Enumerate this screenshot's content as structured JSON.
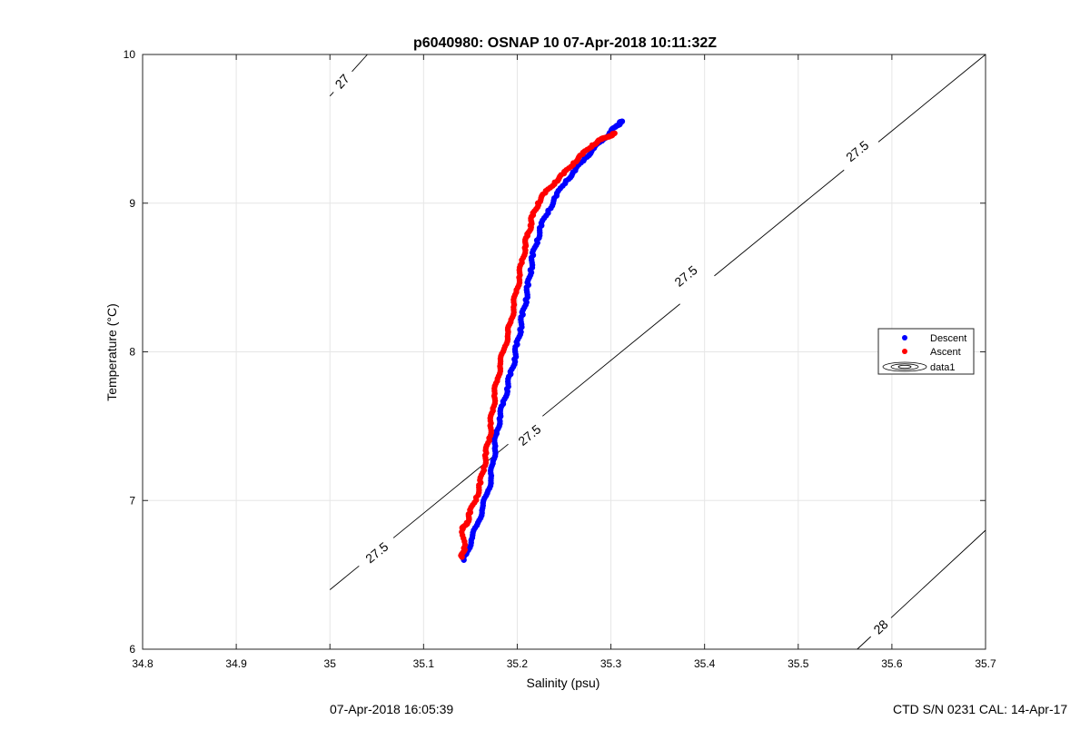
{
  "chart_data": {
    "type": "scatter",
    "title": "p6040980: OSNAP 10 07-Apr-2018 10:11:32Z",
    "xlabel": "Salinity (psu)",
    "ylabel": "Temperature (°C)",
    "xlim": [
      34.8,
      35.7
    ],
    "ylim": [
      6,
      10
    ],
    "x_ticks": [
      "34.8",
      "34.9",
      "35",
      "35.1",
      "35.2",
      "35.3",
      "35.4",
      "35.5",
      "35.6",
      "35.7"
    ],
    "y_ticks": [
      "6",
      "7",
      "8",
      "9",
      "10"
    ],
    "grid": true,
    "legend_position": "right",
    "legend": [
      "Descent",
      "Ascent",
      "data1"
    ],
    "series": [
      {
        "name": "Descent",
        "color": "#0000ff",
        "x": [
          35.143,
          35.146,
          35.152,
          35.158,
          35.163,
          35.168,
          35.172,
          35.174,
          35.176,
          35.178,
          35.181,
          35.185,
          35.189,
          35.193,
          35.197,
          35.2,
          35.203,
          35.206,
          35.209,
          35.212,
          35.214,
          35.217,
          35.221,
          35.226,
          35.233,
          35.242,
          35.252,
          35.262,
          35.272,
          35.282,
          35.292,
          35.3,
          35.306,
          35.31,
          35.312
        ],
        "y": [
          6.6,
          6.65,
          6.75,
          6.85,
          6.95,
          7.05,
          7.15,
          7.25,
          7.35,
          7.45,
          7.55,
          7.65,
          7.75,
          7.85,
          7.95,
          8.05,
          8.15,
          8.25,
          8.35,
          8.45,
          8.55,
          8.65,
          8.75,
          8.85,
          8.95,
          9.05,
          9.15,
          9.22,
          9.3,
          9.37,
          9.43,
          9.48,
          9.52,
          9.54,
          9.55
        ]
      },
      {
        "name": "Ascent",
        "color": "#ff0000",
        "x": [
          35.141,
          35.143,
          35.142,
          35.146,
          35.15,
          35.156,
          35.161,
          35.164,
          35.167,
          35.17,
          35.172,
          35.174,
          35.176,
          35.179,
          35.182,
          35.186,
          35.19,
          35.193,
          35.196,
          35.199,
          35.202,
          35.205,
          35.208,
          35.211,
          35.214,
          35.217,
          35.222,
          35.23,
          35.24,
          35.25,
          35.26,
          35.27,
          35.28,
          35.29,
          35.298,
          35.304
        ],
        "y": [
          6.62,
          6.68,
          6.81,
          6.85,
          6.92,
          7.02,
          7.12,
          7.22,
          7.32,
          7.42,
          7.52,
          7.62,
          7.72,
          7.82,
          7.92,
          8.02,
          8.12,
          8.2,
          8.3,
          8.4,
          8.5,
          8.6,
          8.7,
          8.78,
          8.85,
          8.92,
          9.0,
          9.07,
          9.14,
          9.2,
          9.27,
          9.33,
          9.39,
          9.43,
          9.45,
          9.47
        ]
      }
    ],
    "isopycnals": [
      {
        "label": "27",
        "x": [
          35.0,
          35.04
        ],
        "y": [
          9.72,
          10.0
        ],
        "label_at": [
          35.013,
          9.82
        ]
      },
      {
        "label": "27.5",
        "x": [
          35.0,
          35.7
        ],
        "y": [
          6.4,
          10.0
        ],
        "label_positions": [
          [
            35.05,
            6.65
          ],
          [
            35.213,
            7.44
          ],
          [
            35.38,
            8.51
          ],
          [
            35.563,
            9.35
          ]
        ]
      },
      {
        "label": "28",
        "x": [
          35.563,
          35.7
        ],
        "y": [
          6.0,
          6.8
        ],
        "label_at": [
          35.588,
          6.15
        ]
      }
    ]
  },
  "footer": {
    "left": "07-Apr-2018 16:05:39",
    "right": "CTD S/N 0231  CAL: 14-Apr-17"
  }
}
